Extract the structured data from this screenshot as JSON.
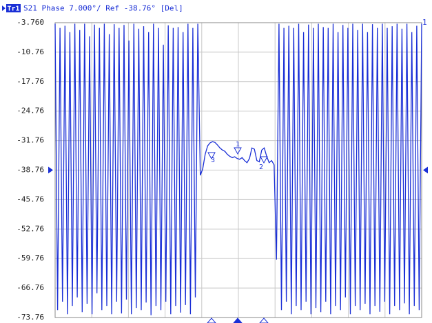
{
  "chart_data": {
    "type": "line",
    "trace_label": "Tr1",
    "title": "S21 Phase 7.000°/ Ref -38.76° [Del]",
    "channel_label": "1",
    "marker_labels": [
      "1",
      "2",
      "3"
    ],
    "color": "#1a2fd6",
    "grid": true,
    "ylim": [
      -73.76,
      -3.76
    ],
    "yticks": [
      {
        "value": -3.76,
        "label": "-3.760"
      },
      -10.76,
      -17.76,
      -24.76,
      -31.76,
      -38.76,
      -45.76,
      -52.76,
      -59.76,
      -66.76,
      -73.76
    ],
    "values": [
      -4,
      -72,
      -5,
      -70,
      -4.5,
      -73,
      -6,
      -71,
      -4,
      -69,
      -5.5,
      -72.5,
      -4,
      -70.5,
      -7,
      -73,
      -4.2,
      -68,
      -5,
      -72,
      -4,
      -71,
      -6.5,
      -73,
      -4.1,
      -70,
      -5,
      -72.8,
      -4.3,
      -69.5,
      -8,
      -73,
      -4,
      -71.5,
      -5.2,
      -72,
      -4.6,
      -70.2,
      -6,
      -73.2,
      -4,
      -71,
      -5,
      -72,
      -9,
      -70,
      -4.4,
      -73,
      -5,
      -71,
      -4.8,
      -72.6,
      -6,
      -70.8,
      -4,
      -73,
      -5,
      -69,
      -4,
      -40,
      -38.5,
      -35,
      -33,
      -32.3,
      -32,
      -32.2,
      -32.8,
      -33.5,
      -34,
      -34.3,
      -35,
      -35.5,
      -35.8,
      -35.6,
      -36,
      -36.2,
      -35.8,
      -36.5,
      -37,
      -36,
      -33.5,
      -33.8,
      -36.5,
      -36.8,
      -34,
      -33.5,
      -35.5,
      -37,
      -36.5,
      -37.5,
      -60,
      -4,
      -72,
      -5,
      -70,
      -4.5,
      -73,
      -5,
      -71,
      -4,
      -72,
      -6,
      -70,
      -4.2,
      -73,
      -5,
      -71.5,
      -4,
      -72.5,
      -4.8,
      -70,
      -5,
      -73,
      -4,
      -71,
      -6,
      -72,
      -4.3,
      -69,
      -5,
      -73,
      -4,
      -71,
      -5.5,
      -72,
      -4,
      -70.5,
      -6,
      -73,
      -4.1,
      -71,
      -5,
      -72.4,
      -4,
      -70,
      -5,
      -73,
      -4.6,
      -71,
      -4,
      -72,
      -5.2,
      -70.4,
      -4,
      -73,
      -6,
      -71,
      -4.5,
      -72,
      -4
    ]
  }
}
